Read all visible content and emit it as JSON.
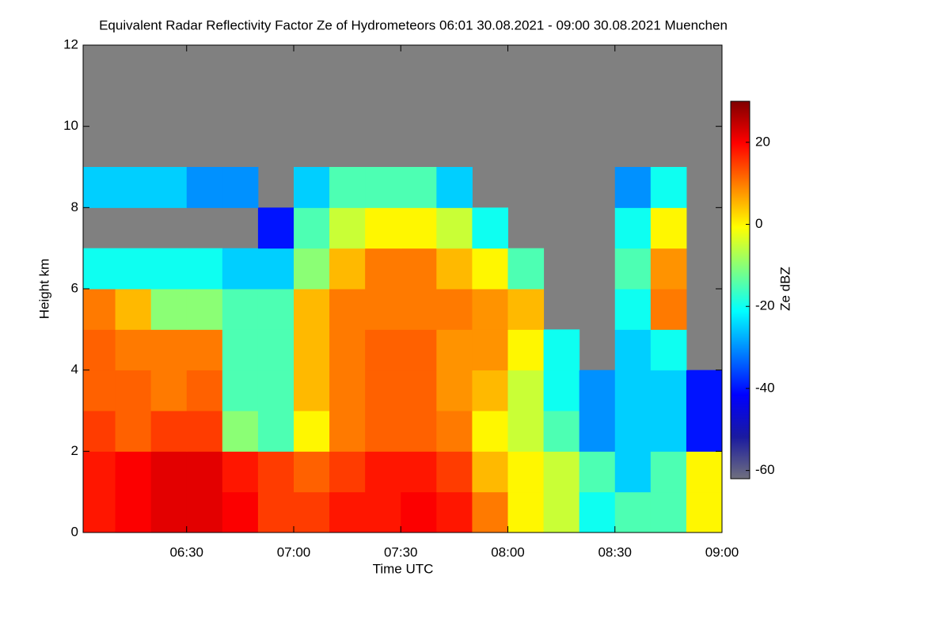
{
  "chart_data": {
    "type": "heatmap",
    "title": "Equivalent Radar Reflectivity Factor Ze of Hydrometeors   06:01 30.08.2021 - 09:00 30.08.2021 Muenchen",
    "x_label": "Time UTC",
    "y_label": "Height km",
    "colorbar_label": "Ze dBZ",
    "x": [
      "06:01",
      "06:10",
      "06:20",
      "06:30",
      "06:40",
      "06:50",
      "07:00",
      "07:10",
      "07:20",
      "07:30",
      "07:40",
      "07:50",
      "08:00",
      "08:10",
      "08:20",
      "08:30",
      "08:40",
      "08:50"
    ],
    "xlim": [
      "06:01",
      "09:00"
    ],
    "xticks": [
      "06:30",
      "07:00",
      "07:30",
      "08:00",
      "08:30",
      "09:00"
    ],
    "y": [
      0,
      1,
      2,
      3,
      4,
      5,
      6,
      7,
      8,
      9,
      10,
      11
    ],
    "ylim": [
      0,
      12
    ],
    "yticks": [
      0,
      2,
      4,
      6,
      8,
      10,
      12
    ],
    "zlim": [
      -62,
      30
    ],
    "zticks": [
      -60,
      -40,
      -20,
      0,
      20
    ],
    "colors": [
      "#70707e",
      "#1a1aa0",
      "#0000ff",
      "#0080ff",
      "#00ffff",
      "#80ff80",
      "#ffff00",
      "#ff8000",
      "#ff0000",
      "#800000"
    ],
    "background_color": "#808080",
    "z": [
      [
        18,
        20,
        22,
        22,
        20,
        15,
        15,
        18,
        18,
        20,
        18,
        10,
        0,
        -5,
        -20,
        -15,
        -15,
        0
      ],
      [
        18,
        20,
        22,
        22,
        18,
        15,
        12,
        15,
        18,
        18,
        15,
        5,
        0,
        -5,
        -15,
        -25,
        -15,
        0
      ],
      [
        15,
        12,
        15,
        15,
        -10,
        -15,
        0,
        10,
        12,
        12,
        10,
        0,
        -5,
        -15,
        -30,
        -25,
        -25,
        -40
      ],
      [
        12,
        12,
        10,
        12,
        -15,
        -15,
        5,
        10,
        12,
        12,
        8,
        5,
        -5,
        -20,
        -30,
        -25,
        -25,
        -40
      ],
      [
        12,
        10,
        10,
        10,
        -15,
        -15,
        5,
        10,
        12,
        12,
        8,
        8,
        0,
        -20,
        null,
        -25,
        -20,
        null
      ],
      [
        10,
        5,
        -10,
        -10,
        -15,
        -15,
        5,
        10,
        10,
        10,
        10,
        8,
        5,
        null,
        null,
        -20,
        10,
        null
      ],
      [
        -20,
        -20,
        -20,
        -20,
        -25,
        -25,
        -10,
        5,
        10,
        10,
        5,
        0,
        -15,
        null,
        null,
        -15,
        8,
        null
      ],
      [
        null,
        null,
        null,
        null,
        null,
        -40,
        -15,
        -5,
        0,
        0,
        -5,
        -20,
        null,
        null,
        null,
        -20,
        0,
        null
      ],
      [
        -25,
        -25,
        -25,
        -30,
        -30,
        null,
        -25,
        -15,
        -15,
        -15,
        -25,
        null,
        null,
        null,
        null,
        -30,
        -20,
        null
      ],
      [
        null,
        null,
        null,
        null,
        null,
        null,
        null,
        null,
        null,
        null,
        null,
        null,
        null,
        null,
        null,
        null,
        null,
        null
      ],
      [
        null,
        null,
        null,
        null,
        null,
        null,
        null,
        null,
        null,
        null,
        null,
        null,
        null,
        null,
        null,
        null,
        null,
        null
      ],
      [
        null,
        null,
        null,
        null,
        null,
        null,
        null,
        null,
        null,
        null,
        null,
        null,
        null,
        null,
        null,
        null,
        null,
        null
      ]
    ]
  }
}
